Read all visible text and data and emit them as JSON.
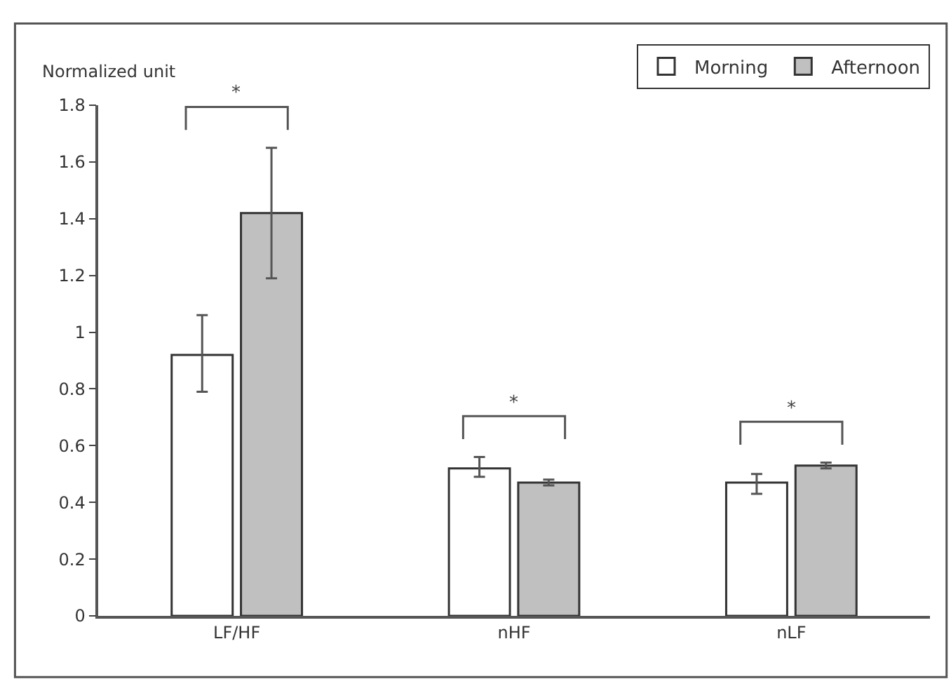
{
  "chart_data": {
    "type": "bar",
    "ylabel": "Normalized unit",
    "categories": [
      "LF/HF",
      "nHF",
      "nLF"
    ],
    "series": [
      {
        "name": "Morning",
        "color": "#ffffff",
        "values": [
          0.92,
          0.52,
          0.47
        ],
        "errors": [
          [
            0.79,
            1.06
          ],
          [
            0.49,
            0.56
          ],
          [
            0.43,
            0.5
          ]
        ]
      },
      {
        "name": "Afternoon",
        "color": "#c0c0c0",
        "values": [
          1.42,
          0.47,
          0.53
        ],
        "errors": [
          [
            1.19,
            1.65
          ],
          [
            0.46,
            0.48
          ],
          [
            0.52,
            0.54
          ]
        ]
      }
    ],
    "ylim": [
      0,
      1.8
    ],
    "yticks": [
      0,
      0.2,
      0.4,
      0.6,
      0.8,
      1,
      1.2,
      1.4,
      1.6,
      1.8
    ],
    "annotations": [
      "*",
      "*",
      "*"
    ],
    "legend": "top right"
  }
}
